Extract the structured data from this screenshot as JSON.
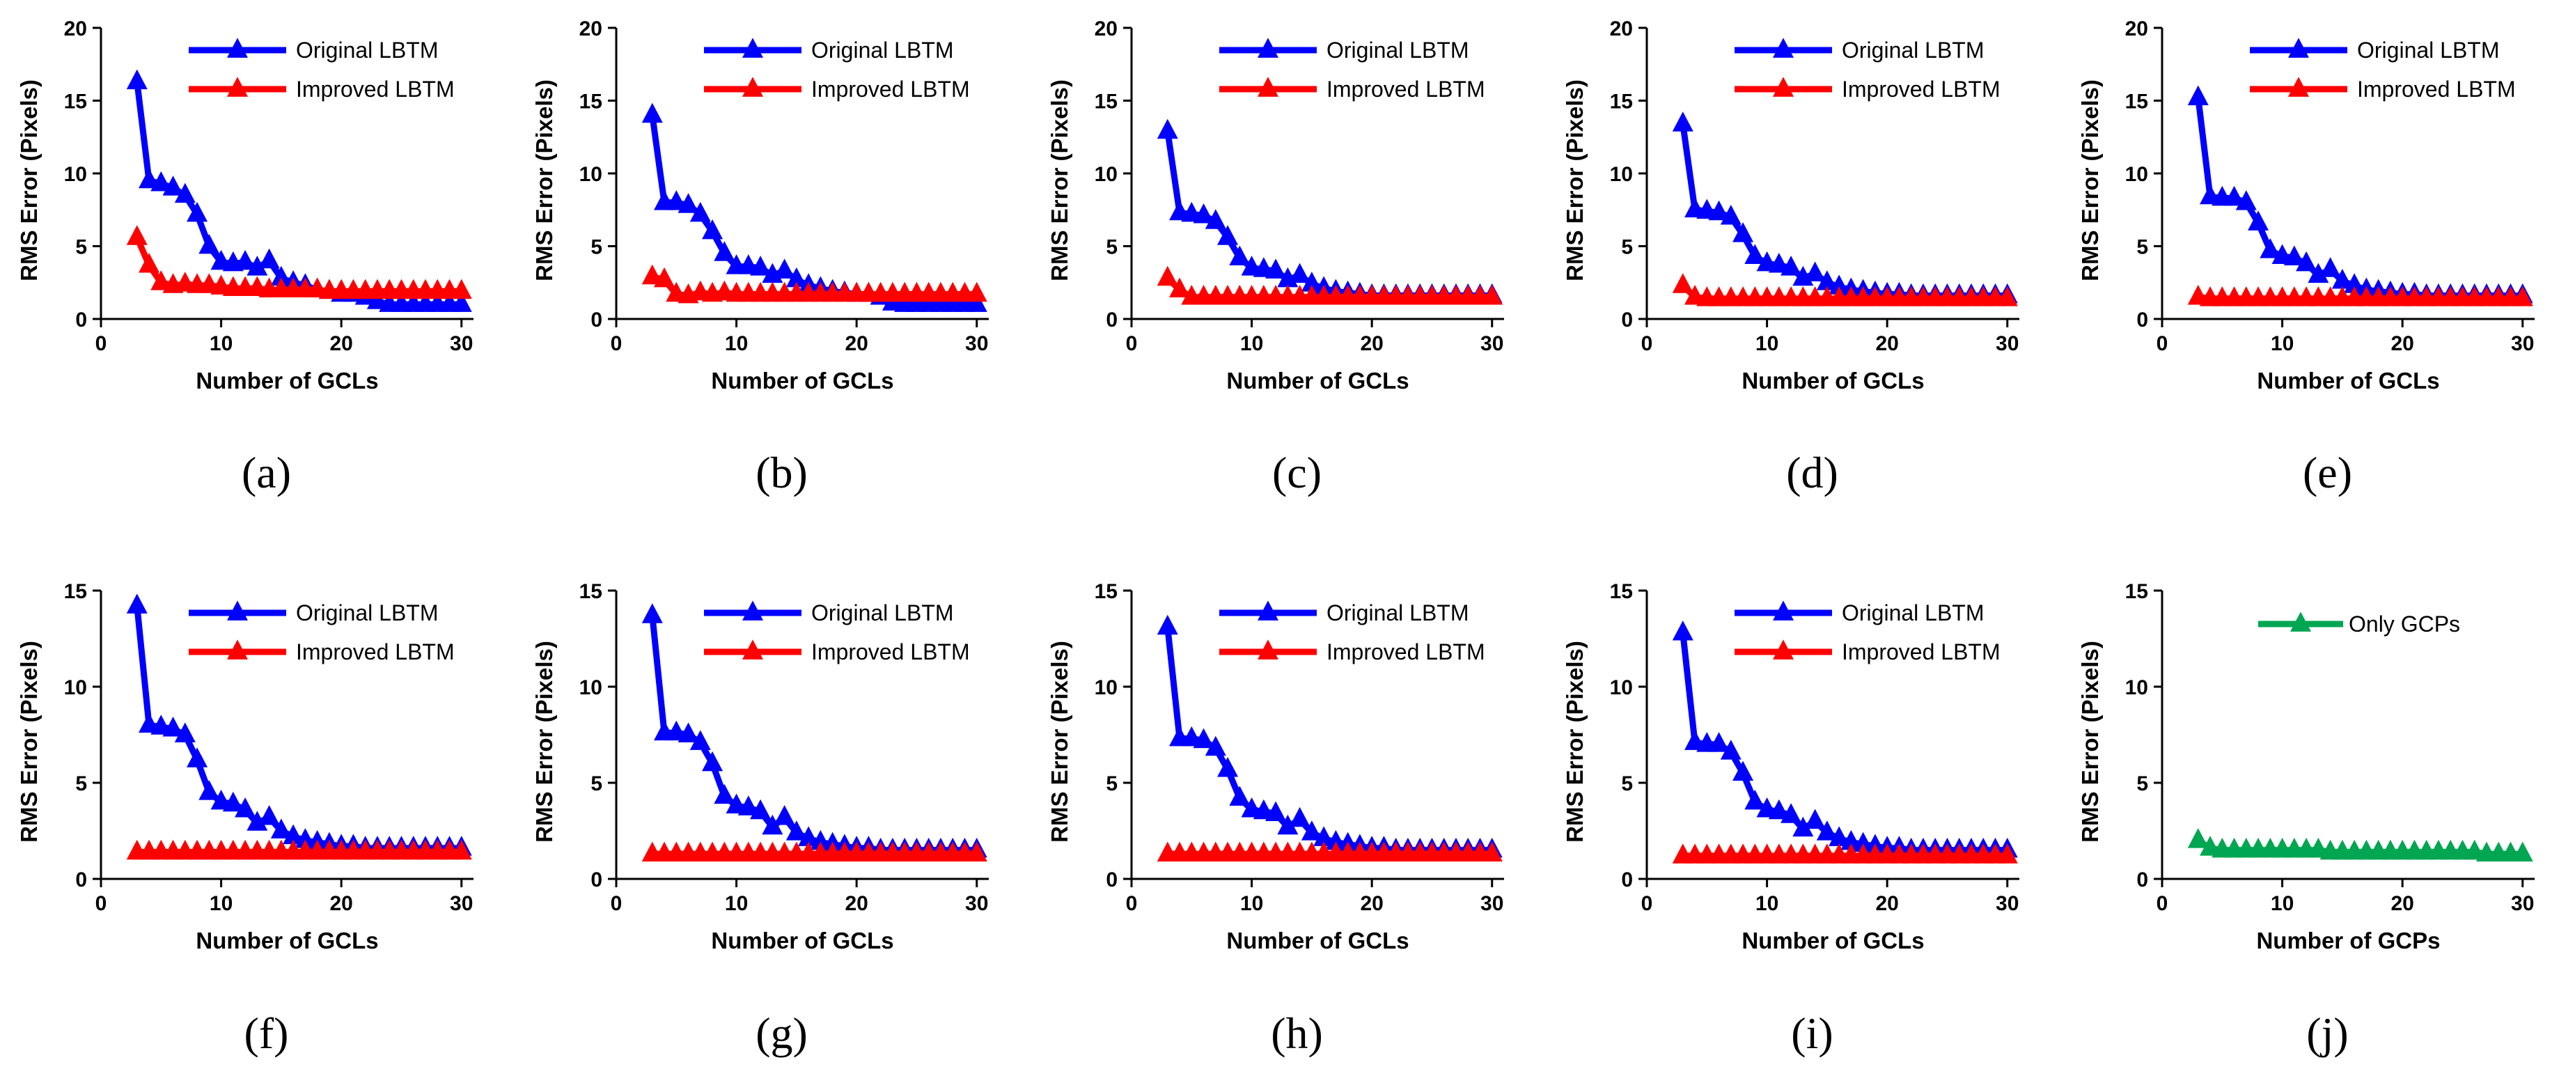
{
  "chart_data": [
    {
      "id": "a",
      "type": "line",
      "caption": "(a)",
      "xlabel": "Number of GCLs",
      "ylabel": "RMS Error (Pixels)",
      "xlim": [
        0,
        31
      ],
      "ylim": [
        0,
        20
      ],
      "xticks": [
        0,
        10,
        20,
        30
      ],
      "yticks": [
        0,
        5,
        10,
        15,
        20
      ],
      "x": [
        3,
        4,
        5,
        6,
        7,
        8,
        9,
        10,
        11,
        12,
        13,
        14,
        15,
        16,
        17,
        18,
        19,
        20,
        21,
        22,
        23,
        24,
        25,
        26,
        27,
        28,
        29,
        30
      ],
      "series": [
        {
          "name": "Original LBTM",
          "color": "#0000FF",
          "values": [
            16.3,
            9.5,
            9.3,
            9.0,
            8.5,
            7.2,
            5.0,
            3.9,
            3.8,
            3.9,
            3.5,
            4.0,
            2.8,
            2.5,
            2.3,
            2.0,
            1.9,
            1.7,
            1.7,
            1.5,
            1.2,
            1.0,
            1.0,
            1.0,
            1.0,
            1.0,
            1.0,
            1.0
          ]
        },
        {
          "name": "Improved LBTM",
          "color": "#FF0000",
          "values": [
            5.6,
            3.7,
            2.5,
            2.3,
            2.4,
            2.3,
            2.3,
            2.2,
            2.1,
            2.1,
            2.1,
            2.0,
            2.0,
            2.0,
            2.0,
            2.0,
            1.9,
            1.9,
            1.9,
            1.9,
            1.9,
            1.9,
            1.9,
            1.9,
            1.9,
            1.9,
            1.9,
            1.9
          ]
        }
      ]
    },
    {
      "id": "b",
      "type": "line",
      "caption": "(b)",
      "xlabel": "Number of GCLs",
      "ylabel": "RMS Error (Pixels)",
      "xlim": [
        0,
        31
      ],
      "ylim": [
        0,
        20
      ],
      "xticks": [
        0,
        10,
        20,
        30
      ],
      "yticks": [
        0,
        5,
        10,
        15,
        20
      ],
      "x": [
        3,
        4,
        5,
        6,
        7,
        8,
        9,
        10,
        11,
        12,
        13,
        14,
        15,
        16,
        17,
        18,
        19,
        20,
        21,
        22,
        23,
        24,
        25,
        26,
        27,
        28,
        29,
        30
      ],
      "series": [
        {
          "name": "Original LBTM",
          "color": "#0000FF",
          "values": [
            14.0,
            8.0,
            8.0,
            7.8,
            7.2,
            6.0,
            4.5,
            3.6,
            3.6,
            3.5,
            3.0,
            3.3,
            2.7,
            2.3,
            2.1,
            1.9,
            1.8,
            1.7,
            1.7,
            1.5,
            1.1,
            1.0,
            1.0,
            1.0,
            1.0,
            1.0,
            1.0,
            1.0
          ]
        },
        {
          "name": "Improved LBTM",
          "color": "#FF0000",
          "values": [
            2.9,
            2.7,
            1.7,
            1.6,
            1.8,
            1.7,
            1.8,
            1.7,
            1.7,
            1.7,
            1.7,
            1.7,
            1.7,
            1.7,
            1.7,
            1.7,
            1.7,
            1.7,
            1.7,
            1.7,
            1.7,
            1.7,
            1.7,
            1.7,
            1.7,
            1.7,
            1.7,
            1.7
          ]
        }
      ]
    },
    {
      "id": "c",
      "type": "line",
      "caption": "(c)",
      "xlabel": "Number of GCLs",
      "ylabel": "RMS Error (Pixels)",
      "xlim": [
        0,
        31
      ],
      "ylim": [
        0,
        20
      ],
      "xticks": [
        0,
        10,
        20,
        30
      ],
      "yticks": [
        0,
        5,
        10,
        15,
        20
      ],
      "x": [
        3,
        4,
        5,
        6,
        7,
        8,
        9,
        10,
        11,
        12,
        13,
        14,
        15,
        16,
        17,
        18,
        19,
        20,
        21,
        22,
        23,
        24,
        25,
        26,
        27,
        28,
        29,
        30
      ],
      "series": [
        {
          "name": "Original LBTM",
          "color": "#0000FF",
          "values": [
            12.9,
            7.3,
            7.2,
            7.1,
            6.7,
            5.6,
            4.2,
            3.5,
            3.4,
            3.3,
            2.7,
            3.0,
            2.4,
            2.1,
            1.9,
            1.8,
            1.7,
            1.6,
            1.6,
            1.6,
            1.6,
            1.6,
            1.6,
            1.6,
            1.6,
            1.6,
            1.6,
            1.6
          ]
        },
        {
          "name": "Improved LBTM",
          "color": "#FF0000",
          "values": [
            2.8,
            2.0,
            1.5,
            1.5,
            1.5,
            1.5,
            1.5,
            1.5,
            1.5,
            1.5,
            1.5,
            1.5,
            1.5,
            1.5,
            1.5,
            1.5,
            1.5,
            1.5,
            1.5,
            1.5,
            1.5,
            1.5,
            1.5,
            1.5,
            1.5,
            1.5,
            1.5,
            1.5
          ]
        }
      ]
    },
    {
      "id": "d",
      "type": "line",
      "caption": "(d)",
      "xlabel": "Number of GCLs",
      "ylabel": "RMS Error (Pixels)",
      "xlim": [
        0,
        31
      ],
      "ylim": [
        0,
        20
      ],
      "xticks": [
        0,
        10,
        20,
        30
      ],
      "yticks": [
        0,
        5,
        10,
        15,
        20
      ],
      "x": [
        3,
        4,
        5,
        6,
        7,
        8,
        9,
        10,
        11,
        12,
        13,
        14,
        15,
        16,
        17,
        18,
        19,
        20,
        21,
        22,
        23,
        24,
        25,
        26,
        27,
        28,
        29,
        30
      ],
      "series": [
        {
          "name": "Original LBTM",
          "color": "#0000FF",
          "values": [
            13.4,
            7.5,
            7.4,
            7.3,
            7.0,
            5.8,
            4.3,
            3.8,
            3.7,
            3.5,
            2.8,
            3.1,
            2.5,
            2.2,
            2.0,
            1.9,
            1.8,
            1.7,
            1.7,
            1.6,
            1.6,
            1.6,
            1.6,
            1.6,
            1.6,
            1.6,
            1.6,
            1.6
          ]
        },
        {
          "name": "Improved LBTM",
          "color": "#FF0000",
          "values": [
            2.3,
            1.5,
            1.4,
            1.4,
            1.4,
            1.4,
            1.4,
            1.4,
            1.4,
            1.4,
            1.4,
            1.4,
            1.4,
            1.4,
            1.4,
            1.4,
            1.4,
            1.4,
            1.4,
            1.4,
            1.4,
            1.4,
            1.4,
            1.4,
            1.4,
            1.4,
            1.4,
            1.4
          ]
        }
      ]
    },
    {
      "id": "e",
      "type": "line",
      "caption": "(e)",
      "xlabel": "Number of GCLs",
      "ylabel": "RMS Error (Pixels)",
      "xlim": [
        0,
        31
      ],
      "ylim": [
        0,
        20
      ],
      "xticks": [
        0,
        10,
        20,
        30
      ],
      "yticks": [
        0,
        5,
        10,
        15,
        20
      ],
      "x": [
        3,
        4,
        5,
        6,
        7,
        8,
        9,
        10,
        11,
        12,
        13,
        14,
        15,
        16,
        17,
        18,
        19,
        20,
        21,
        22,
        23,
        24,
        25,
        26,
        27,
        28,
        29,
        30
      ],
      "series": [
        {
          "name": "Original LBTM",
          "color": "#0000FF",
          "values": [
            15.2,
            8.4,
            8.3,
            8.3,
            8.0,
            6.6,
            4.7,
            4.3,
            4.2,
            3.8,
            3.0,
            3.4,
            2.6,
            2.3,
            2.0,
            1.9,
            1.8,
            1.7,
            1.7,
            1.6,
            1.6,
            1.6,
            1.6,
            1.6,
            1.6,
            1.6,
            1.6,
            1.6
          ]
        },
        {
          "name": "Improved LBTM",
          "color": "#FF0000",
          "values": [
            1.5,
            1.4,
            1.4,
            1.4,
            1.4,
            1.4,
            1.4,
            1.4,
            1.4,
            1.4,
            1.4,
            1.4,
            1.4,
            1.4,
            1.4,
            1.4,
            1.4,
            1.4,
            1.4,
            1.4,
            1.4,
            1.4,
            1.4,
            1.4,
            1.4,
            1.4,
            1.4,
            1.4
          ]
        }
      ]
    },
    {
      "id": "f",
      "type": "line",
      "caption": "(f)",
      "xlabel": "Number of GCLs",
      "ylabel": "RMS Error (Pixels)",
      "xlim": [
        0,
        31
      ],
      "ylim": [
        0,
        15
      ],
      "xticks": [
        0,
        10,
        20,
        30
      ],
      "yticks": [
        0,
        5,
        10,
        15
      ],
      "x": [
        3,
        4,
        5,
        6,
        7,
        8,
        9,
        10,
        11,
        12,
        13,
        14,
        15,
        16,
        17,
        18,
        19,
        20,
        21,
        22,
        23,
        24,
        25,
        26,
        27,
        28,
        29,
        30
      ],
      "series": [
        {
          "name": "Original LBTM",
          "color": "#0000FF",
          "values": [
            14.2,
            8.0,
            7.9,
            7.8,
            7.5,
            6.2,
            4.5,
            4.0,
            3.9,
            3.6,
            2.9,
            3.2,
            2.5,
            2.2,
            2.0,
            1.9,
            1.8,
            1.7,
            1.7,
            1.6,
            1.6,
            1.6,
            1.6,
            1.6,
            1.6,
            1.6,
            1.6,
            1.6
          ]
        },
        {
          "name": "Improved LBTM",
          "color": "#FF0000",
          "values": [
            1.4,
            1.4,
            1.4,
            1.4,
            1.4,
            1.4,
            1.4,
            1.4,
            1.4,
            1.4,
            1.4,
            1.4,
            1.4,
            1.4,
            1.4,
            1.4,
            1.4,
            1.4,
            1.4,
            1.4,
            1.4,
            1.4,
            1.4,
            1.4,
            1.4,
            1.4,
            1.4,
            1.4
          ]
        }
      ]
    },
    {
      "id": "g",
      "type": "line",
      "caption": "(g)",
      "xlabel": "Number of GCLs",
      "ylabel": "RMS Error (Pixels)",
      "xlim": [
        0,
        31
      ],
      "ylim": [
        0,
        15
      ],
      "xticks": [
        0,
        10,
        20,
        30
      ],
      "yticks": [
        0,
        5,
        10,
        15
      ],
      "x": [
        3,
        4,
        5,
        6,
        7,
        8,
        9,
        10,
        11,
        12,
        13,
        14,
        15,
        16,
        17,
        18,
        19,
        20,
        21,
        22,
        23,
        24,
        25,
        26,
        27,
        28,
        29,
        30
      ],
      "series": [
        {
          "name": "Original LBTM",
          "color": "#0000FF",
          "values": [
            13.7,
            7.6,
            7.6,
            7.5,
            7.1,
            6.0,
            4.3,
            3.8,
            3.7,
            3.5,
            2.7,
            3.2,
            2.4,
            2.1,
            1.9,
            1.8,
            1.7,
            1.6,
            1.6,
            1.5,
            1.5,
            1.5,
            1.5,
            1.5,
            1.5,
            1.5,
            1.5,
            1.5
          ]
        },
        {
          "name": "Improved LBTM",
          "color": "#FF0000",
          "values": [
            1.3,
            1.3,
            1.3,
            1.3,
            1.3,
            1.3,
            1.3,
            1.3,
            1.3,
            1.3,
            1.3,
            1.3,
            1.3,
            1.3,
            1.3,
            1.3,
            1.3,
            1.3,
            1.3,
            1.3,
            1.3,
            1.3,
            1.3,
            1.3,
            1.3,
            1.3,
            1.3,
            1.3
          ]
        }
      ]
    },
    {
      "id": "h",
      "type": "line",
      "caption": "(h)",
      "xlabel": "Number of GCLs",
      "ylabel": "RMS Error (Pixels)",
      "xlim": [
        0,
        31
      ],
      "ylim": [
        0,
        15
      ],
      "xticks": [
        0,
        10,
        20,
        30
      ],
      "yticks": [
        0,
        5,
        10,
        15
      ],
      "x": [
        3,
        4,
        5,
        6,
        7,
        8,
        9,
        10,
        11,
        12,
        13,
        14,
        15,
        16,
        17,
        18,
        19,
        20,
        21,
        22,
        23,
        24,
        25,
        26,
        27,
        28,
        29,
        30
      ],
      "series": [
        {
          "name": "Original LBTM",
          "color": "#0000FF",
          "values": [
            13.1,
            7.3,
            7.3,
            7.2,
            6.8,
            5.7,
            4.2,
            3.6,
            3.5,
            3.4,
            2.7,
            3.1,
            2.4,
            2.1,
            1.9,
            1.8,
            1.7,
            1.6,
            1.6,
            1.5,
            1.5,
            1.5,
            1.5,
            1.5,
            1.5,
            1.5,
            1.5,
            1.5
          ]
        },
        {
          "name": "Improved LBTM",
          "color": "#FF0000",
          "values": [
            1.3,
            1.3,
            1.3,
            1.3,
            1.3,
            1.3,
            1.3,
            1.3,
            1.3,
            1.3,
            1.3,
            1.3,
            1.3,
            1.3,
            1.3,
            1.3,
            1.3,
            1.3,
            1.3,
            1.3,
            1.3,
            1.3,
            1.3,
            1.3,
            1.3,
            1.3,
            1.3,
            1.3
          ]
        }
      ]
    },
    {
      "id": "i",
      "type": "line",
      "caption": "(i)",
      "xlabel": "Number of GCLs",
      "ylabel": "RMS Error (Pixels)",
      "xlim": [
        0,
        31
      ],
      "ylim": [
        0,
        15
      ],
      "xticks": [
        0,
        10,
        20,
        30
      ],
      "yticks": [
        0,
        5,
        10,
        15
      ],
      "x": [
        3,
        4,
        5,
        6,
        7,
        8,
        9,
        10,
        11,
        12,
        13,
        14,
        15,
        16,
        17,
        18,
        19,
        20,
        21,
        22,
        23,
        24,
        25,
        26,
        27,
        28,
        29,
        30
      ],
      "series": [
        {
          "name": "Original LBTM",
          "color": "#0000FF",
          "values": [
            12.8,
            7.1,
            7.0,
            7.0,
            6.6,
            5.5,
            4.0,
            3.6,
            3.5,
            3.3,
            2.6,
            3.0,
            2.4,
            2.1,
            1.9,
            1.8,
            1.7,
            1.6,
            1.6,
            1.5,
            1.5,
            1.5,
            1.5,
            1.5,
            1.5,
            1.5,
            1.5,
            1.5
          ]
        },
        {
          "name": "Improved LBTM",
          "color": "#FF0000",
          "values": [
            1.2,
            1.2,
            1.2,
            1.2,
            1.2,
            1.2,
            1.2,
            1.2,
            1.2,
            1.2,
            1.2,
            1.2,
            1.2,
            1.2,
            1.2,
            1.2,
            1.2,
            1.2,
            1.2,
            1.2,
            1.2,
            1.2,
            1.2,
            1.2,
            1.2,
            1.2,
            1.2,
            1.2
          ]
        }
      ]
    },
    {
      "id": "j",
      "type": "line",
      "caption": "(j)",
      "xlabel": "Number of GCPs",
      "ylabel": "RMS Error (Pixels)",
      "xlim": [
        0,
        31
      ],
      "ylim": [
        0,
        15
      ],
      "xticks": [
        0,
        10,
        20,
        30
      ],
      "yticks": [
        0,
        5,
        10,
        15
      ],
      "x": [
        3,
        4,
        5,
        6,
        7,
        8,
        9,
        10,
        11,
        12,
        13,
        14,
        15,
        16,
        17,
        18,
        19,
        20,
        21,
        22,
        23,
        24,
        25,
        26,
        27,
        28,
        29,
        30
      ],
      "series": [
        {
          "name": "Only GCPs",
          "color": "#00A651",
          "values": [
            2.0,
            1.6,
            1.5,
            1.5,
            1.5,
            1.5,
            1.5,
            1.5,
            1.5,
            1.5,
            1.5,
            1.4,
            1.4,
            1.4,
            1.4,
            1.4,
            1.4,
            1.4,
            1.4,
            1.4,
            1.4,
            1.4,
            1.4,
            1.4,
            1.3,
            1.3,
            1.3,
            1.3
          ]
        }
      ]
    }
  ]
}
